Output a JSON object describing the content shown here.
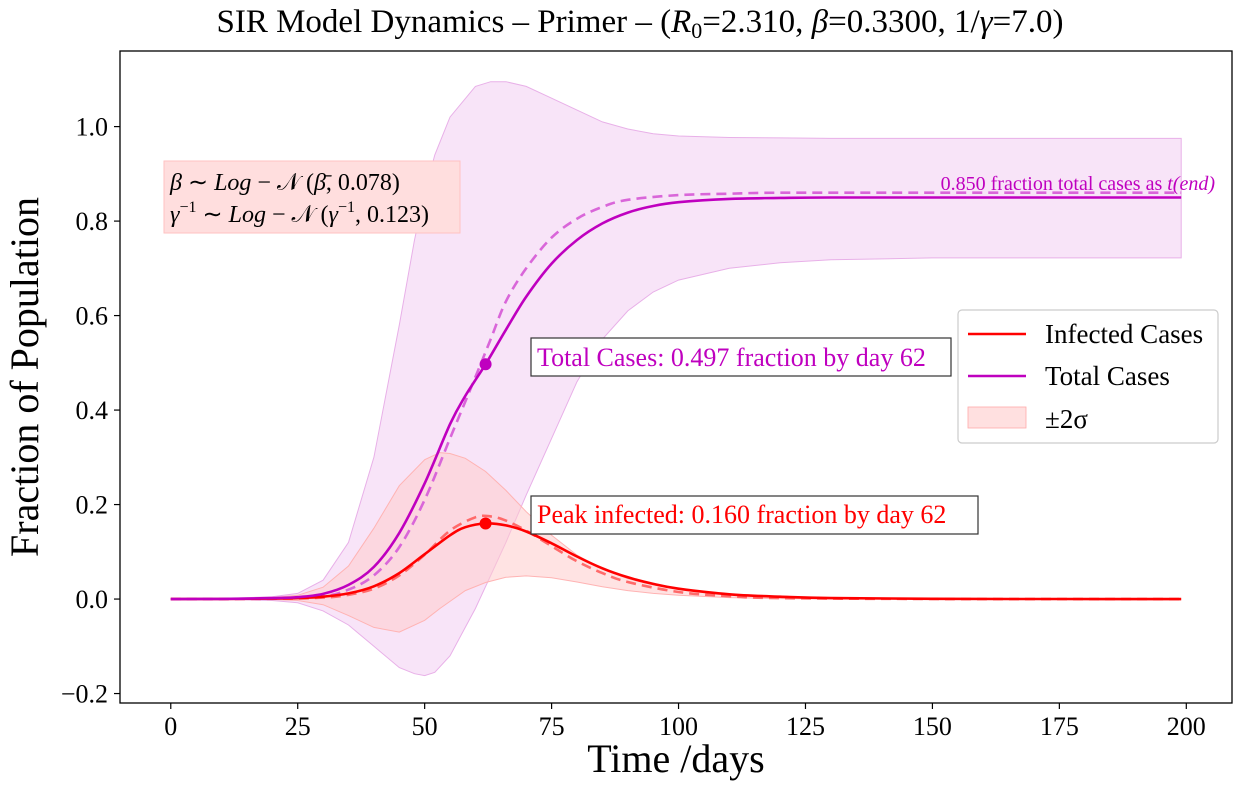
{
  "chart_data": {
    "type": "line",
    "title": "SIR Model Dynamics – Primer – (",
    "title_params": {
      "r0_symbol": "R",
      "r0_sub": "0",
      "r0_value": "=2.310, ",
      "beta_symbol": "β",
      "beta_value": "=0.3300, 1/",
      "gamma_symbol": "γ",
      "gamma_value": "=7.0)"
    },
    "xlabel": "Time /days",
    "ylabel": "Fraction of Population",
    "xlim": [
      -10,
      209
    ],
    "ylim": [
      -0.22,
      1.16
    ],
    "x_ticks": [
      0,
      25,
      50,
      75,
      100,
      125,
      150,
      175,
      200
    ],
    "y_ticks": [
      -0.2,
      0.0,
      0.2,
      0.4,
      0.6,
      0.8,
      1.0
    ],
    "y_tick_labels": [
      "−0.2",
      "0.0",
      "0.2",
      "0.4",
      "0.6",
      "0.8",
      "1.0"
    ],
    "colors": {
      "infected": "#ff0000",
      "total": "#bf00bf",
      "infected_band": "#ffcccc",
      "total_band": "#f2c9f2",
      "infected_dashed": "#ff6a6a",
      "total_dashed": "#d966d9"
    },
    "series": [
      {
        "name": "Infected Cases",
        "style": "solid",
        "x": [
          0,
          10,
          20,
          25,
          30,
          35,
          40,
          45,
          50,
          55,
          58,
          62,
          66,
          70,
          75,
          80,
          85,
          90,
          95,
          100,
          110,
          120,
          130,
          150,
          175,
          199
        ],
        "y": [
          0.0,
          0.0002,
          0.001,
          0.002,
          0.005,
          0.012,
          0.027,
          0.055,
          0.095,
          0.135,
          0.152,
          0.16,
          0.156,
          0.143,
          0.118,
          0.09,
          0.065,
          0.046,
          0.032,
          0.022,
          0.01,
          0.005,
          0.002,
          0.0005,
          0.0001,
          0.0
        ]
      },
      {
        "name": "Total Cases",
        "style": "solid",
        "x": [
          0,
          10,
          20,
          25,
          30,
          35,
          40,
          45,
          50,
          55,
          58,
          62,
          66,
          70,
          75,
          80,
          85,
          90,
          95,
          100,
          110,
          120,
          130,
          150,
          175,
          199
        ],
        "y": [
          0.0,
          0.0004,
          0.002,
          0.004,
          0.011,
          0.03,
          0.068,
          0.14,
          0.245,
          0.37,
          0.43,
          0.497,
          0.57,
          0.64,
          0.71,
          0.76,
          0.795,
          0.818,
          0.832,
          0.84,
          0.847,
          0.849,
          0.85,
          0.85,
          0.85,
          0.85
        ]
      },
      {
        "name": "",
        "style": "dashed",
        "x": [
          0,
          20,
          30,
          35,
          40,
          45,
          50,
          55,
          60,
          63,
          66,
          70,
          75,
          80,
          85,
          90,
          100,
          110,
          120,
          150,
          199
        ],
        "y": [
          0.0,
          0.0005,
          0.003,
          0.009,
          0.022,
          0.05,
          0.094,
          0.145,
          0.173,
          0.175,
          0.166,
          0.145,
          0.112,
          0.08,
          0.055,
          0.036,
          0.015,
          0.006,
          0.002,
          0.0002,
          0.0
        ]
      },
      {
        "name": "",
        "style": "dashed",
        "x": [
          0,
          20,
          30,
          35,
          40,
          45,
          50,
          55,
          60,
          63,
          66,
          70,
          75,
          80,
          85,
          90,
          100,
          110,
          120,
          150,
          199
        ],
        "y": [
          0.0,
          0.001,
          0.006,
          0.02,
          0.05,
          0.11,
          0.21,
          0.34,
          0.47,
          0.55,
          0.63,
          0.7,
          0.765,
          0.805,
          0.83,
          0.845,
          0.855,
          0.858,
          0.86,
          0.86,
          0.86
        ]
      }
    ],
    "bands": [
      {
        "name": "±2σ",
        "x": [
          0,
          10,
          20,
          25,
          30,
          35,
          40,
          45,
          50,
          53,
          55,
          58,
          62,
          66,
          70,
          75,
          80,
          85,
          90,
          95,
          100,
          110,
          120,
          130,
          150,
          175,
          199
        ],
        "upper": [
          0.0,
          0.0005,
          0.003,
          0.008,
          0.025,
          0.07,
          0.15,
          0.24,
          0.295,
          0.31,
          0.308,
          0.298,
          0.27,
          0.23,
          0.185,
          0.135,
          0.093,
          0.063,
          0.043,
          0.03,
          0.021,
          0.01,
          0.005,
          0.002,
          0.0006,
          0.0001,
          0.0
        ],
        "lower": [
          0.0,
          0.0,
          -0.001,
          -0.003,
          -0.012,
          -0.035,
          -0.06,
          -0.07,
          -0.045,
          -0.02,
          -0.005,
          0.018,
          0.035,
          0.046,
          0.049,
          0.045,
          0.036,
          0.026,
          0.018,
          0.012,
          0.008,
          0.003,
          0.001,
          0.0003,
          0.0,
          0.0,
          0.0
        ]
      },
      {
        "name": "",
        "x": [
          0,
          10,
          20,
          25,
          30,
          35,
          40,
          45,
          48,
          50,
          52,
          55,
          60,
          63,
          66,
          70,
          75,
          80,
          85,
          90,
          95,
          100,
          110,
          120,
          130,
          150,
          175,
          199
        ],
        "upper": [
          0.0,
          0.001,
          0.005,
          0.012,
          0.04,
          0.12,
          0.3,
          0.58,
          0.76,
          0.86,
          0.94,
          1.02,
          1.085,
          1.095,
          1.095,
          1.085,
          1.06,
          1.035,
          1.01,
          0.995,
          0.985,
          0.98,
          0.977,
          0.976,
          0.975,
          0.975,
          0.975,
          0.975
        ],
        "lower": [
          0.0,
          -0.0005,
          -0.003,
          -0.008,
          -0.025,
          -0.055,
          -0.1,
          -0.145,
          -0.158,
          -0.162,
          -0.155,
          -0.12,
          -0.02,
          0.05,
          0.12,
          0.22,
          0.34,
          0.46,
          0.55,
          0.61,
          0.65,
          0.675,
          0.7,
          0.712,
          0.718,
          0.722,
          0.722,
          0.722
        ]
      }
    ],
    "markers": [
      {
        "x": 62,
        "y": 0.497,
        "series": "Total Cases"
      },
      {
        "x": 62,
        "y": 0.16,
        "series": "Infected Cases"
      }
    ],
    "annotations": {
      "total": "Total Cases: 0.497 fraction by day 62",
      "peak": "Peak infected: 0.160 fraction by day 62",
      "end_fraction": "0.850 fraction total cases as ",
      "end_t": "t",
      "end_paren": "(end)",
      "beta_line": {
        "a": "β",
        "b": " ∼ ",
        "c": "Log",
        "d": " − 𝒩 (",
        "e": "β̄",
        "f": ", 0.078)"
      },
      "gamma_line": {
        "a": "γ",
        "sup": "−1",
        "b": " ∼ ",
        "c": "Log",
        "d": " − 𝒩 (",
        "e": "γ",
        "esup": "−1",
        "f": ", 0.123)"
      }
    },
    "legend": {
      "placement": "center-right",
      "items": [
        "Infected Cases",
        "Total Cases",
        "±2σ"
      ]
    },
    "grid": false
  }
}
